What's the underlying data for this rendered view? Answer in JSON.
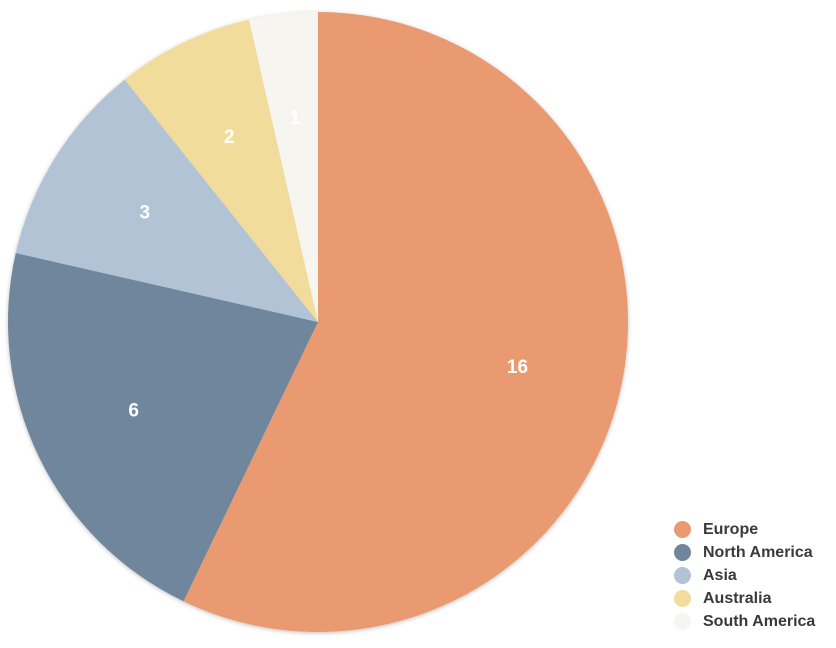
{
  "chart_data": {
    "type": "pie",
    "categories": [
      "Europe",
      "North America",
      "Asia",
      "Australia",
      "South America"
    ],
    "values": [
      16,
      6,
      3,
      2,
      1
    ],
    "colors": [
      "#EA9A70",
      "#6F869C",
      "#B2C3D6",
      "#F2DC9C",
      "#F7F5EF"
    ],
    "title": "",
    "legend_position": "bottom-right",
    "start_angle": "12 o'clock",
    "direction": "clockwise"
  }
}
